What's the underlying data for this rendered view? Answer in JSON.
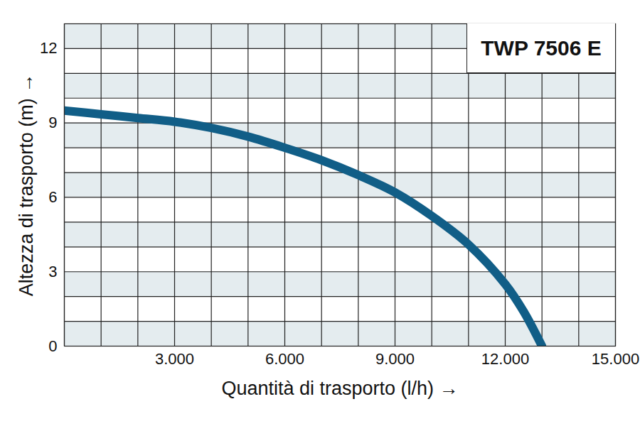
{
  "chart_data": {
    "type": "line",
    "title": "TWP 7506 E",
    "xlabel": "Quantità di trasporto (l/h)",
    "ylabel": "Altezza di trasporto (m)",
    "x": [
      0,
      1000,
      2000,
      3000,
      4000,
      5000,
      6000,
      7000,
      8000,
      9000,
      10000,
      11000,
      12000,
      12500,
      13000
    ],
    "values": [
      9.5,
      9.35,
      9.2,
      9.05,
      8.8,
      8.45,
      8.0,
      7.5,
      6.9,
      6.2,
      5.25,
      4.1,
      2.5,
      1.4,
      0.0
    ],
    "color": "#115e87",
    "xlim": [
      0,
      15000
    ],
    "ylim": [
      0,
      13
    ],
    "xticks": [
      {
        "value": 3000,
        "label": "3.000"
      },
      {
        "value": 6000,
        "label": "6.000"
      },
      {
        "value": 9000,
        "label": "9.000"
      },
      {
        "value": 12000,
        "label": "12.000"
      },
      {
        "value": 15000,
        "label": "15.000"
      }
    ],
    "yticks": [
      0,
      3,
      6,
      9,
      12
    ],
    "grid": true
  }
}
